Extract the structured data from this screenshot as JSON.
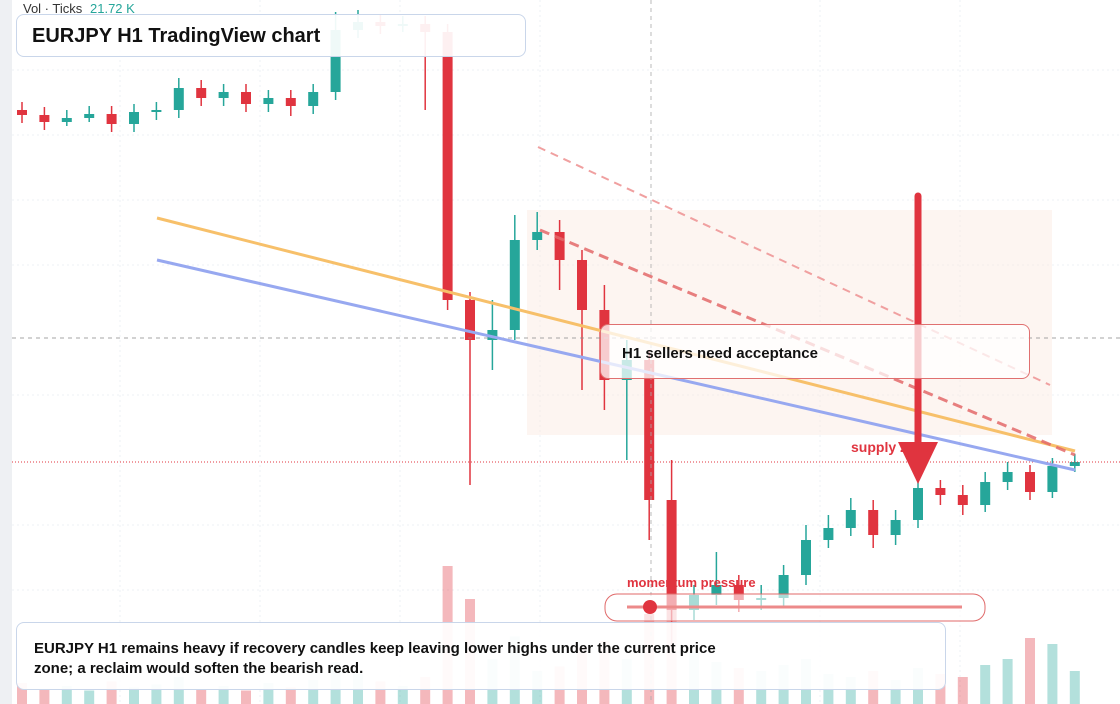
{
  "chart_data": {
    "type": "candlestick",
    "title": "EURJPY H1 TradingView chart",
    "volume_label": "Vol · Ticks",
    "volume_value": "21.72 K",
    "annotations": [
      "H1 sellers need acceptance",
      "supply zone",
      "momentum pressure"
    ],
    "caption": "EURJPY H1 remains heavy if recovery candles keep leaving lower highs under the current price zone; a reclaim would soften the bearish read.",
    "up_color": "#26a69a",
    "down_color": "#e0343f",
    "ylim": [
      160,
      167.04
    ],
    "open": [
      165.94,
      165.89,
      165.82,
      165.86,
      165.9,
      165.8,
      165.92,
      165.94,
      166.16,
      166.06,
      166.12,
      166.0,
      166.06,
      165.98,
      166.12,
      166.74,
      166.82,
      166.78,
      166.8,
      166.72,
      164.04,
      163.64,
      163.74,
      164.64,
      164.72,
      164.44,
      163.94,
      163.24,
      163.44,
      162.04,
      160.94,
      161.09,
      161.19,
      161.04,
      161.06,
      161.29,
      161.64,
      161.76,
      161.94,
      161.69,
      161.84,
      162.16,
      162.09,
      161.99,
      162.22,
      162.32,
      162.12,
      162.38
    ],
    "high": [
      166.02,
      165.97,
      165.94,
      165.98,
      165.98,
      166.0,
      166.02,
      166.26,
      166.24,
      166.2,
      166.2,
      166.14,
      166.14,
      166.2,
      166.92,
      166.94,
      166.9,
      166.88,
      166.88,
      166.8,
      164.12,
      164.04,
      164.89,
      164.92,
      164.84,
      164.54,
      164.19,
      163.64,
      163.54,
      162.44,
      161.19,
      161.52,
      161.29,
      161.19,
      161.39,
      161.79,
      161.89,
      162.06,
      162.04,
      161.94,
      162.26,
      162.24,
      162.19,
      162.32,
      162.42,
      162.39,
      162.46,
      162.5
    ],
    "low": [
      165.81,
      165.74,
      165.78,
      165.82,
      165.72,
      165.72,
      165.84,
      165.86,
      165.98,
      165.98,
      165.92,
      165.92,
      165.88,
      165.9,
      166.04,
      166.66,
      166.7,
      166.72,
      165.94,
      163.94,
      162.19,
      163.34,
      163.64,
      164.54,
      164.14,
      163.14,
      162.94,
      162.44,
      161.64,
      160.54,
      160.84,
      160.99,
      160.92,
      160.94,
      160.98,
      161.19,
      161.56,
      161.68,
      161.56,
      161.59,
      161.76,
      161.99,
      161.89,
      161.92,
      162.14,
      162.04,
      162.06,
      162.32
    ],
    "close": [
      165.89,
      165.82,
      165.86,
      165.9,
      165.8,
      165.92,
      165.94,
      166.16,
      166.06,
      166.12,
      166.0,
      166.06,
      165.98,
      166.12,
      166.74,
      166.82,
      166.78,
      166.8,
      166.72,
      164.04,
      163.64,
      163.74,
      164.64,
      164.72,
      164.44,
      163.94,
      163.24,
      163.44,
      162.04,
      160.94,
      161.09,
      161.19,
      161.04,
      161.06,
      161.29,
      161.64,
      161.76,
      161.94,
      161.69,
      161.84,
      162.16,
      162.09,
      161.99,
      162.22,
      162.32,
      162.12,
      162.38,
      162.42
    ],
    "volume": {
      "values": [
        14,
        10,
        12,
        9,
        15,
        11,
        13,
        18,
        10,
        12,
        9,
        14,
        11,
        16,
        28,
        20,
        15,
        12,
        18,
        92,
        70,
        30,
        45,
        22,
        25,
        38,
        42,
        30,
        60,
        80,
        35,
        28,
        24,
        22,
        26,
        30,
        20,
        18,
        22,
        16,
        24,
        20,
        18,
        26,
        30,
        44,
        40,
        22
      ],
      "ylim": [
        0,
        100
      ]
    }
  }
}
